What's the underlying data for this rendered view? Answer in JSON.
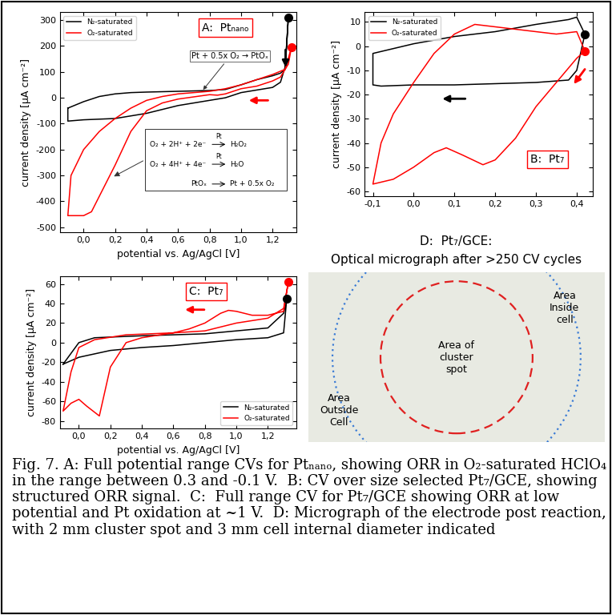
{
  "chart_data": [
    {
      "type": "line",
      "title": "A:  Ptₙₐₙₒ",
      "x_label": "potential vs. Ag/AgCl [V]",
      "y_label": "current density [µA cm⁻²]",
      "xlim": [
        -0.15,
        1.35
      ],
      "xticks": [
        {
          "value": 0.0,
          "label": "0,0"
        },
        {
          "value": 0.2,
          "label": "0,2"
        },
        {
          "value": 0.4,
          "label": "0,4"
        },
        {
          "value": 0.6,
          "label": "0,6"
        },
        {
          "value": 0.8,
          "label": "0,8"
        },
        {
          "value": 1.0,
          "label": "1,0"
        },
        {
          "value": 1.2,
          "label": "1,2"
        }
      ],
      "ylim": [
        -520,
        330
      ],
      "yticks": [
        -500,
        -400,
        -300,
        -200,
        -100,
        0,
        100,
        200,
        300
      ],
      "legend": "upper left",
      "series": [
        {
          "name": "N₂-saturated",
          "color": "#000000",
          "x": [
            -0.1,
            0.0,
            0.1,
            0.2,
            0.3,
            0.4,
            0.6,
            0.8,
            0.9,
            1.0,
            1.1,
            1.2,
            1.25,
            1.28,
            1.3,
            1.28,
            1.25,
            1.2,
            1.1,
            1.0,
            0.9,
            0.85,
            0.8,
            0.6,
            0.4,
            0.2,
            0.0,
            -0.1,
            -0.1
          ],
          "values": [
            -40,
            -15,
            5,
            15,
            20,
            22,
            25,
            28,
            32,
            50,
            70,
            85,
            95,
            110,
            310,
            120,
            60,
            40,
            30,
            20,
            0,
            -5,
            -10,
            -30,
            -60,
            -80,
            -85,
            -90,
            -40
          ]
        },
        {
          "name": "O₂-saturated",
          "color": "#ff0000",
          "x": [
            1.32,
            1.3,
            1.25,
            1.2,
            1.1,
            1.0,
            0.9,
            0.85,
            0.8,
            0.6,
            0.5,
            0.4,
            0.3,
            0.2,
            0.1,
            0.05,
            0.0,
            -0.1,
            -0.08,
            0.0,
            0.1,
            0.2,
            0.3,
            0.4,
            0.5,
            0.6,
            0.8,
            0.9,
            1.0,
            1.1,
            1.2,
            1.28,
            1.32
          ],
          "values": [
            195,
            130,
            80,
            65,
            45,
            35,
            15,
            10,
            12,
            -5,
            -20,
            -50,
            -130,
            -260,
            -380,
            -440,
            -455,
            -455,
            -300,
            -200,
            -130,
            -80,
            -40,
            -10,
            5,
            15,
            25,
            35,
            50,
            70,
            90,
            110,
            195
          ]
        }
      ],
      "markers": [
        {
          "x": 1.3,
          "y": 310,
          "color": "#000000"
        },
        {
          "x": 1.32,
          "y": 195,
          "color": "#ff0000"
        }
      ],
      "annotation": "Pt + 0.5x O₂ → PtOₓ",
      "reactions": [
        {
          "left": "O₂ + 2H⁺ + 2e⁻",
          "catalyst": "Pt",
          "right": "H₂O₂"
        },
        {
          "left": "O₂ + 4H⁺ + 4e⁻",
          "catalyst": "Pt",
          "right": "H₂O"
        },
        {
          "left": "PtOₓ",
          "right": "Pt + 0.5x O₂"
        }
      ]
    },
    {
      "type": "line",
      "title": "B:  Pt₇",
      "y_label": "current density [µA cm⁻²]",
      "xlim": [
        -0.12,
        0.44
      ],
      "xticks": [
        {
          "value": -0.1,
          "label": "-0,1"
        },
        {
          "value": 0.0,
          "label": "0,0"
        },
        {
          "value": 0.1,
          "label": "0,1"
        },
        {
          "value": 0.2,
          "label": "0,2"
        },
        {
          "value": 0.3,
          "label": "0,3"
        },
        {
          "value": 0.4,
          "label": "0,4"
        }
      ],
      "ylim": [
        -62,
        14
      ],
      "yticks": [
        -60,
        -50,
        -40,
        -30,
        -20,
        -10,
        0,
        10
      ],
      "legend": "upper left",
      "series": [
        {
          "name": "N₂-saturated",
          "color": "#000000",
          "x": [
            0.42,
            0.4,
            0.38,
            0.3,
            0.2,
            0.1,
            0.0,
            -0.08,
            -0.1,
            -0.1,
            -0.05,
            0.0,
            0.1,
            0.2,
            0.3,
            0.38,
            0.4,
            0.42
          ],
          "values": [
            5,
            -10,
            -14,
            -15,
            -15.5,
            -16,
            -16,
            -16.5,
            -16,
            -3,
            -1,
            1,
            4,
            6,
            9,
            11,
            12,
            5
          ]
        },
        {
          "name": "O₂-saturated",
          "color": "#ff0000",
          "x": [
            0.42,
            0.4,
            0.35,
            0.3,
            0.25,
            0.2,
            0.17,
            0.12,
            0.08,
            0.05,
            0.0,
            -0.05,
            -0.1,
            -0.08,
            -0.05,
            0.0,
            0.05,
            0.1,
            0.15,
            0.2,
            0.25,
            0.3,
            0.35,
            0.4,
            0.42
          ],
          "values": [
            -2,
            -5,
            -15,
            -25,
            -38,
            -47,
            -49,
            -45,
            -42,
            -44,
            -50,
            -55,
            -57,
            -40,
            -28,
            -15,
            -3,
            5,
            9,
            8,
            7,
            6,
            5,
            6,
            -2
          ]
        }
      ],
      "markers": [
        {
          "x": 0.42,
          "y": 5,
          "color": "#000000"
        },
        {
          "x": 0.42,
          "y": -2,
          "color": "#ff0000"
        }
      ]
    },
    {
      "type": "line",
      "title": "C:  Pt₇",
      "x_label": "potential vs. Ag/AgCl [V]",
      "y_label": "current density [µA cm⁻²]",
      "xlim": [
        -0.12,
        1.38
      ],
      "xticks": [
        {
          "value": 0.0,
          "label": "0,0"
        },
        {
          "value": 0.2,
          "label": "0,2"
        },
        {
          "value": 0.4,
          "label": "0,4"
        },
        {
          "value": 0.6,
          "label": "0,6"
        },
        {
          "value": 0.8,
          "label": "0,8"
        },
        {
          "value": 1.0,
          "label": "1,0"
        },
        {
          "value": 1.2,
          "label": "1,2"
        }
      ],
      "ylim": [
        -88,
        68
      ],
      "yticks": [
        -80,
        -60,
        -40,
        -20,
        0,
        20,
        40,
        60
      ],
      "legend": "lower right",
      "series": [
        {
          "name": "N₂-saturated",
          "color": "#000000",
          "x": [
            -0.1,
            0.0,
            0.1,
            0.4,
            0.8,
            1.0,
            1.2,
            1.3,
            1.32,
            1.3,
            1.2,
            1.0,
            0.8,
            0.6,
            0.4,
            0.2,
            0.0,
            -0.1
          ],
          "values": [
            -22,
            0,
            5,
            7,
            9,
            12,
            15,
            30,
            45,
            10,
            5,
            3,
            0,
            -3,
            -5,
            -8,
            -15,
            -22
          ]
        },
        {
          "name": "O₂-saturated",
          "color": "#ff0000",
          "x": [
            1.33,
            1.3,
            1.2,
            1.1,
            1.0,
            0.95,
            0.9,
            0.8,
            0.7,
            0.6,
            0.4,
            0.3,
            0.2,
            0.13,
            0.05,
            0.0,
            -0.05,
            -0.1,
            -0.05,
            0.0,
            0.1,
            0.3,
            0.6,
            0.8,
            1.0,
            1.2,
            1.3,
            1.33
          ],
          "values": [
            62,
            32,
            28,
            28,
            32,
            33,
            30,
            20,
            14,
            10,
            5,
            0,
            -25,
            -75,
            -65,
            -58,
            -62,
            -70,
            -30,
            -5,
            3,
            8,
            10,
            12,
            20,
            25,
            35,
            62
          ]
        }
      ],
      "markers": [
        {
          "x": 1.32,
          "y": 45,
          "color": "#000000"
        },
        {
          "x": 1.33,
          "y": 62,
          "color": "#ff0000"
        }
      ]
    }
  ],
  "panel_d": {
    "title": "D:  Pt₇/GCE:",
    "subtitle": "Optical micrograph after >250 CV cycles",
    "label_spot": "Area of\ncluster\nspot",
    "label_inside": "Area\nInside\ncell",
    "label_outside": "Area\nOutside\nCell"
  },
  "caption": "Fig. 7. A: Full potential range CVs for Ptₙₐₙₒ, showing ORR in O₂-saturated HClO₄ in the range between 0.3 and -0.1 V.  B: CV over size selected Pt₇/GCE, showing structured ORR signal.  C:  Full range CV for Pt₇/GCE showing ORR at low potential and Pt oxidation at ~1 V.  D: Micrograph of the electrode post reaction, with 2 mm cluster spot and 3 mm cell internal diameter indicated"
}
